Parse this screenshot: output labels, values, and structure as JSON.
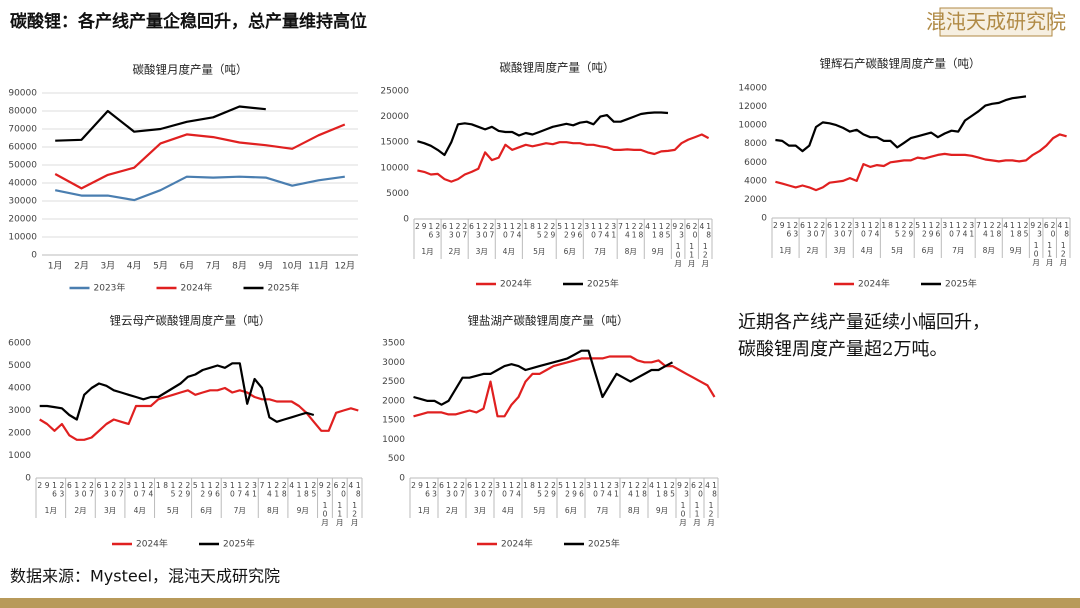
{
  "header": {
    "title": "碳酸锂：各产线产量企稳回升，总产量维持高位",
    "logo": "混沌天成研究院"
  },
  "note": {
    "lines": [
      "近期各产线产量延续小幅回升，",
      "碳酸锂周度产量超2万吨。"
    ]
  },
  "footer": {
    "source": "数据来源：Mysteel，混沌天成研究院"
  },
  "chart_data": [
    {
      "type": "line",
      "title": "碳酸锂月度产量（吨）",
      "grid": true,
      "legend": "bottom",
      "categories": [
        "1月",
        "2月",
        "3月",
        "4月",
        "5月",
        "6月",
        "7月",
        "8月",
        "9月",
        "10月",
        "11月",
        "12月"
      ],
      "ylim": [
        0,
        90000
      ],
      "yticks": [
        0,
        10000,
        20000,
        30000,
        40000,
        50000,
        60000,
        70000,
        80000,
        90000
      ],
      "series": [
        {
          "name": "2023年",
          "color": "#4a7eb0",
          "values": [
            36000,
            33000,
            33000,
            30500,
            36000,
            43500,
            43000,
            43500,
            43000,
            38500,
            41500,
            43500
          ]
        },
        {
          "name": "2024年",
          "color": "#e02020",
          "values": [
            45000,
            37000,
            44500,
            48500,
            62000,
            67000,
            65500,
            62500,
            61000,
            59000,
            66500,
            72500
          ]
        },
        {
          "name": "2025年",
          "color": "#000000",
          "values": [
            63500,
            64000,
            80000,
            68500,
            70000,
            74000,
            76500,
            82500,
            81000,
            null,
            null,
            null
          ]
        }
      ]
    },
    {
      "type": "line",
      "title": "碳酸锂周度产量（吨）",
      "grid": false,
      "legend": "bottom",
      "categories": [
        "2",
        "9",
        "16",
        "23",
        "6",
        "13",
        "20",
        "27",
        "6",
        "13",
        "20",
        "27",
        "3",
        "10",
        "17",
        "24",
        "1",
        "8",
        "15",
        "22",
        "29",
        "5",
        "12",
        "19",
        "26",
        "3",
        "10",
        "17",
        "24",
        "31",
        "7",
        "14",
        "21",
        "28",
        "4",
        "11",
        "18",
        "25",
        "9",
        "23",
        "6",
        "20",
        "4",
        "18"
      ],
      "category_groups": [
        "1月",
        "1月",
        "1月",
        "1月",
        "2月",
        "2月",
        "2月",
        "2月",
        "3月",
        "3月",
        "3月",
        "3月",
        "4月",
        "4月",
        "4月",
        "4月",
        "5月",
        "5月",
        "5月",
        "5月",
        "5月",
        "6月",
        "6月",
        "6月",
        "6月",
        "7月",
        "7月",
        "7月",
        "7月",
        "7月",
        "8月",
        "8月",
        "8月",
        "8月",
        "9月",
        "9月",
        "9月",
        "9月",
        "10月",
        "10月",
        "11月",
        "11月",
        "12月",
        "12月"
      ],
      "ylim": [
        0,
        25000
      ],
      "yticks": [
        0,
        5000,
        10000,
        15000,
        20000,
        25000
      ],
      "series": [
        {
          "name": "2024年",
          "color": "#e02020",
          "values": [
            9500,
            9200,
            8700,
            8800,
            7800,
            7300,
            7800,
            8700,
            9200,
            9800,
            13000,
            11500,
            12000,
            14500,
            13500,
            14000,
            14500,
            14200,
            14500,
            14800,
            14600,
            15000,
            15000,
            14800,
            14800,
            14500,
            14500,
            14200,
            14000,
            13500,
            13500,
            13600,
            13500,
            13500,
            13000,
            12700,
            13200,
            13300,
            13500,
            14800,
            15500,
            16000,
            16500,
            15800
          ]
        },
        {
          "name": "2025年",
          "color": "#000000",
          "values": [
            15200,
            14800,
            14300,
            13500,
            12500,
            15000,
            18500,
            18700,
            18500,
            18000,
            17500,
            18000,
            17200,
            17000,
            17000,
            16300,
            16800,
            16500,
            17000,
            17500,
            18000,
            18300,
            18600,
            18300,
            18800,
            19000,
            18500,
            20000,
            20300,
            19000,
            19000,
            19500,
            20000,
            20500,
            20700,
            20800,
            20800,
            20700,
            null,
            null,
            null,
            null,
            null,
            null
          ]
        }
      ]
    },
    {
      "type": "line",
      "title": "锂辉石产碳酸锂周度产量（吨）",
      "grid": false,
      "legend": "bottom",
      "categories": [
        "2",
        "9",
        "16",
        "23",
        "6",
        "13",
        "20",
        "27",
        "6",
        "13",
        "20",
        "27",
        "3",
        "10",
        "17",
        "24",
        "1",
        "8",
        "15",
        "22",
        "29",
        "5",
        "12",
        "19",
        "26",
        "3",
        "10",
        "17",
        "24",
        "31",
        "7",
        "14",
        "21",
        "28",
        "4",
        "11",
        "18",
        "25",
        "9",
        "23",
        "6",
        "20",
        "4",
        "18"
      ],
      "category_groups": [
        "1月",
        "1月",
        "1月",
        "1月",
        "2月",
        "2月",
        "2月",
        "2月",
        "3月",
        "3月",
        "3月",
        "3月",
        "4月",
        "4月",
        "4月",
        "4月",
        "5月",
        "5月",
        "5月",
        "5月",
        "5月",
        "6月",
        "6月",
        "6月",
        "6月",
        "7月",
        "7月",
        "7月",
        "7月",
        "7月",
        "8月",
        "8月",
        "8月",
        "8月",
        "9月",
        "9月",
        "9月",
        "9月",
        "10月",
        "10月",
        "11月",
        "11月",
        "12月",
        "12月"
      ],
      "ylim": [
        0,
        14000
      ],
      "yticks": [
        0,
        2000,
        4000,
        6000,
        8000,
        10000,
        12000,
        14000
      ],
      "series": [
        {
          "name": "2024年",
          "color": "#e02020",
          "values": [
            3900,
            3700,
            3500,
            3300,
            3500,
            3300,
            3000,
            3300,
            3800,
            3900,
            4000,
            4300,
            4000,
            5800,
            5500,
            5700,
            5600,
            6000,
            6100,
            6200,
            6200,
            6500,
            6400,
            6600,
            6800,
            6900,
            6800,
            6800,
            6800,
            6700,
            6500,
            6300,
            6200,
            6100,
            6200,
            6200,
            6100,
            6200,
            6800,
            7200,
            7800,
            8600,
            9000,
            8800
          ]
        },
        {
          "name": "2025年",
          "color": "#000000",
          "values": [
            8400,
            8300,
            7800,
            7800,
            7200,
            7800,
            9800,
            10300,
            10200,
            10000,
            9700,
            9300,
            9500,
            9000,
            8700,
            8700,
            8300,
            8300,
            7600,
            8100,
            8600,
            8800,
            9000,
            9200,
            8700,
            9100,
            9400,
            9300,
            10500,
            11000,
            11500,
            12100,
            12300,
            12400,
            12700,
            12900,
            13000,
            13100,
            null,
            null,
            null,
            null,
            null,
            null
          ]
        }
      ]
    },
    {
      "type": "line",
      "title": "锂云母产碳酸锂周度产量（吨）",
      "grid": false,
      "legend": "bottom",
      "categories": [
        "2",
        "9",
        "16",
        "23",
        "6",
        "13",
        "20",
        "27",
        "6",
        "13",
        "20",
        "27",
        "3",
        "10",
        "17",
        "24",
        "1",
        "8",
        "15",
        "22",
        "29",
        "5",
        "12",
        "19",
        "26",
        "3",
        "10",
        "17",
        "24",
        "31",
        "7",
        "14",
        "21",
        "28",
        "4",
        "11",
        "18",
        "25",
        "9",
        "23",
        "6",
        "20",
        "4",
        "18"
      ],
      "category_groups": [
        "1月",
        "1月",
        "1月",
        "1月",
        "2月",
        "2月",
        "2月",
        "2月",
        "3月",
        "3月",
        "3月",
        "3月",
        "4月",
        "4月",
        "4月",
        "4月",
        "5月",
        "5月",
        "5月",
        "5月",
        "5月",
        "6月",
        "6月",
        "6月",
        "6月",
        "7月",
        "7月",
        "7月",
        "7月",
        "7月",
        "8月",
        "8月",
        "8月",
        "8月",
        "9月",
        "9月",
        "9月",
        "9月",
        "10月",
        "10月",
        "11月",
        "11月",
        "12月",
        "12月"
      ],
      "ylim": [
        0,
        6000
      ],
      "yticks": [
        0,
        1000,
        2000,
        3000,
        4000,
        5000,
        6000
      ],
      "series": [
        {
          "name": "2024年",
          "color": "#e02020",
          "values": [
            2600,
            2400,
            2100,
            2400,
            1900,
            1700,
            1700,
            1800,
            2100,
            2400,
            2600,
            2500,
            2400,
            3200,
            3200,
            3200,
            3500,
            3600,
            3700,
            3800,
            3900,
            3700,
            3800,
            3900,
            3900,
            4000,
            3800,
            3900,
            3800,
            3600,
            3500,
            3500,
            3400,
            3400,
            3400,
            3200,
            2900,
            2500,
            2100,
            2100,
            2900,
            3000,
            3100,
            3000
          ]
        },
        {
          "name": "2025年",
          "color": "#000000",
          "values": [
            3200,
            3200,
            3150,
            3100,
            2800,
            2600,
            3700,
            4000,
            4200,
            4100,
            3900,
            3800,
            3700,
            3600,
            3500,
            3600,
            3600,
            3800,
            4000,
            4200,
            4500,
            4600,
            4800,
            4900,
            5000,
            4900,
            5100,
            5100,
            3300,
            4400,
            4000,
            2700,
            2500,
            2600,
            2700,
            2800,
            2900,
            2800,
            null,
            null,
            null,
            null,
            null,
            null
          ]
        }
      ]
    },
    {
      "type": "line",
      "title": "锂盐湖产碳酸锂周度产量（吨）",
      "grid": false,
      "legend": "bottom",
      "categories": [
        "2",
        "9",
        "16",
        "23",
        "6",
        "13",
        "20",
        "27",
        "6",
        "13",
        "20",
        "27",
        "3",
        "10",
        "17",
        "24",
        "1",
        "8",
        "15",
        "22",
        "29",
        "5",
        "12",
        "19",
        "26",
        "3",
        "10",
        "17",
        "24",
        "31",
        "7",
        "14",
        "21",
        "28",
        "4",
        "11",
        "18",
        "25",
        "9",
        "23",
        "6",
        "20",
        "4",
        "18"
      ],
      "category_groups": [
        "1月",
        "1月",
        "1月",
        "1月",
        "2月",
        "2月",
        "2月",
        "2月",
        "3月",
        "3月",
        "3月",
        "3月",
        "4月",
        "4月",
        "4月",
        "4月",
        "5月",
        "5月",
        "5月",
        "5月",
        "5月",
        "6月",
        "6月",
        "6月",
        "6月",
        "7月",
        "7月",
        "7月",
        "7月",
        "7月",
        "8月",
        "8月",
        "8月",
        "8月",
        "9月",
        "9月",
        "9月",
        "9月",
        "10月",
        "10月",
        "11月",
        "11月",
        "12月",
        "12月"
      ],
      "ylim": [
        0,
        3500
      ],
      "yticks": [
        0,
        500,
        1000,
        1500,
        2000,
        2500,
        3000,
        3500
      ],
      "series": [
        {
          "name": "2024年",
          "color": "#e02020",
          "values": [
            1600,
            1650,
            1700,
            1700,
            1700,
            1650,
            1650,
            1700,
            1750,
            1700,
            1800,
            2500,
            1600,
            1600,
            1900,
            2100,
            2500,
            2700,
            2700,
            2800,
            2900,
            2950,
            3000,
            3050,
            3100,
            3100,
            3100,
            3100,
            3150,
            3150,
            3150,
            3150,
            3050,
            3000,
            3000,
            3050,
            2900,
            2900,
            2800,
            2700,
            2600,
            2500,
            2400,
            2100
          ]
        },
        {
          "name": "2025年",
          "color": "#000000",
          "values": [
            2100,
            2050,
            2000,
            2000,
            1900,
            2000,
            2300,
            2600,
            2600,
            2650,
            2700,
            2700,
            2800,
            2900,
            2950,
            2900,
            2800,
            2850,
            2900,
            2950,
            3000,
            3050,
            3100,
            3200,
            3300,
            3300,
            2700,
            2100,
            2400,
            2700,
            2600,
            2500,
            2600,
            2700,
            2800,
            2800,
            2900,
            3000,
            null,
            null,
            null,
            null,
            null,
            null
          ]
        }
      ]
    }
  ]
}
